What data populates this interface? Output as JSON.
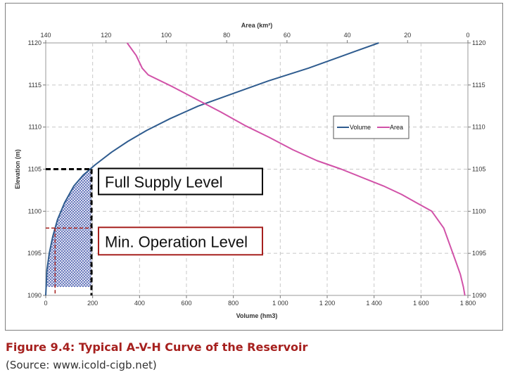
{
  "caption": {
    "title": "Figure 9.4: Typical A-V-H Curve of the Reservoir",
    "source": "(Source: www.icold-cigb.net)"
  },
  "chart_data": {
    "type": "line",
    "ylabel": "Elevation (m)",
    "xlabel_bottom": "Volume (hm3)",
    "xlabel_top": "Area (km²)",
    "ylim": [
      1090,
      1120
    ],
    "y_ticks": [
      1090,
      1095,
      1100,
      1105,
      1110,
      1115,
      1120
    ],
    "x_bottom_lim": [
      0,
      1800
    ],
    "x_bottom_ticks": [
      0,
      200,
      400,
      600,
      800,
      1000,
      1200,
      1400,
      1600,
      1800
    ],
    "x_bottom_tick_labels": [
      "0",
      "200",
      "400",
      "600",
      "800",
      "1 000",
      "1 200",
      "1 400",
      "1 600",
      "1 800"
    ],
    "x_top_lim": [
      140,
      0
    ],
    "x_top_ticks": [
      140,
      120,
      100,
      80,
      60,
      40,
      20,
      0
    ],
    "grid": true,
    "legend_position": "right",
    "series": [
      {
        "name": "Volume",
        "axis": "bottom",
        "color": "#2f5c8f",
        "x": [
          0,
          5,
          15,
          30,
          50,
          80,
          120,
          160,
          210,
          280,
          350,
          430,
          530,
          650,
          800,
          950,
          1120,
          1270,
          1420
        ],
        "y": [
          1090,
          1093,
          1095,
          1097,
          1099,
          1101,
          1103,
          1104.3,
          1105.5,
          1107,
          1108.3,
          1109.6,
          1111,
          1112.5,
          1114,
          1115.5,
          1117,
          1118.5,
          1120
        ]
      },
      {
        "name": "Area",
        "axis": "top",
        "color": "#d152a8",
        "x": [
          1,
          1.5,
          2.5,
          4,
          6,
          8,
          12,
          17,
          22,
          28,
          35,
          42,
          50,
          58,
          66,
          74,
          82,
          90,
          98,
          106,
          108,
          110,
          113
        ],
        "y": [
          1090,
          1091,
          1092.5,
          1094,
          1096,
          1098,
          1100,
          1101,
          1102,
          1103,
          1104,
          1105,
          1106,
          1107.3,
          1108.8,
          1110.2,
          1111.8,
          1113.3,
          1114.8,
          1116.2,
          1117,
          1118.5,
          1120
        ]
      }
    ],
    "annotations": [
      {
        "label": "Full Supply Level",
        "elevation": 1105,
        "volume": 195,
        "color": "#000000",
        "box_border": "#000000"
      },
      {
        "label": "Min. Operation Level",
        "elevation": 1098,
        "volume": 195,
        "min_volume": 40,
        "color": "#000000",
        "box_border": "#a6201e",
        "line_color": "#a6201e"
      }
    ],
    "shading": {
      "from_elevation": 1091,
      "to_elevation": 1105,
      "max_volume": 195,
      "color": "#3a4fa8"
    }
  }
}
